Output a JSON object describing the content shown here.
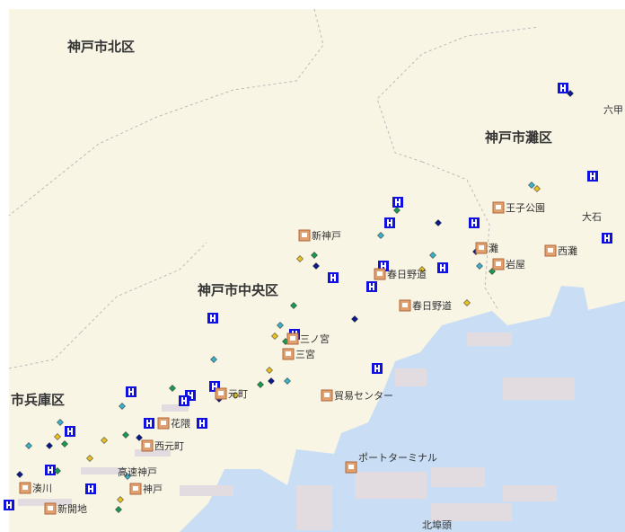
{
  "districts": [
    {
      "label": "神戸市北区"
    },
    {
      "label": "神戸市灘区"
    },
    {
      "label": "神戸市中央区"
    },
    {
      "label": "市兵庫区"
    }
  ],
  "places": [
    {
      "label": "六甲"
    },
    {
      "label": "大石"
    },
    {
      "label": "北埠頭"
    },
    {
      "label": "高速神戸"
    }
  ],
  "stations": [
    {
      "label": "新神戸"
    },
    {
      "label": "王子公園"
    },
    {
      "label": "灘"
    },
    {
      "label": "西灘"
    },
    {
      "label": "岩屋"
    },
    {
      "label": "春日野道"
    },
    {
      "label": "春日野道"
    },
    {
      "label": "三ノ宮"
    },
    {
      "label": "三宮"
    },
    {
      "label": "元町"
    },
    {
      "label": "貿易センター"
    },
    {
      "label": "花隈"
    },
    {
      "label": "西元町"
    },
    {
      "label": "神戸"
    },
    {
      "label": "湊川"
    },
    {
      "label": "新開地"
    },
    {
      "label": "ポートターミナル"
    }
  ]
}
